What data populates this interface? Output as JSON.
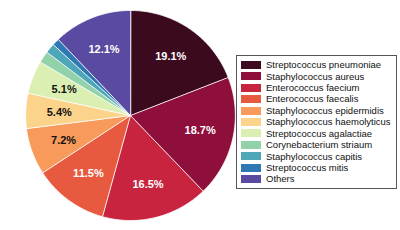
{
  "chart_data": {
    "type": "pie",
    "categories": [
      "Streptococcus pneumoniae",
      "Staphylococcus aureus",
      "Enterococcus faecium",
      "Enterococcus faecalis",
      "Staphylococcus epidermidis",
      "Staphylococcus haemolyticus",
      "Streptococcus agalactiae",
      "Corynebacterium striaum",
      "Staphylococcus capitis",
      "Streptococcus mitis",
      "Others"
    ],
    "values": [
      19.1,
      18.7,
      16.5,
      11.5,
      7.2,
      5.4,
      5.1,
      1.8,
      1.5,
      1.1,
      12.1
    ],
    "value_labels": [
      "19.1%",
      "18.7%",
      "16.5%",
      "11.5%",
      "7.2%",
      "5.4%",
      "5.1%",
      null,
      null,
      null,
      "12.1%"
    ],
    "colors": [
      "#3b0a1e",
      "#8e0f3c",
      "#c9243f",
      "#e85a3f",
      "#f79a5b",
      "#fcd38b",
      "#dcefb2",
      "#92d2aa",
      "#4ea7b8",
      "#2f78b4",
      "#5a4aa1"
    ],
    "data_labels": true,
    "legend": "right"
  }
}
